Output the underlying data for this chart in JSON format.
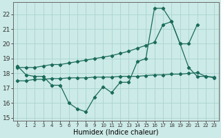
{
  "background_color": "#cceae7",
  "grid_color": "#aad4d0",
  "line_color": "#1a6b5a",
  "xlabel": "Humidex (Indice chaleur)",
  "yticks": [
    15,
    16,
    17,
    18,
    19,
    20,
    21,
    22
  ],
  "ylim": [
    14.8,
    22.8
  ],
  "xlim": [
    -0.5,
    23.5
  ],
  "xtick_labels": [
    "0",
    "1",
    "2",
    "3",
    "4",
    "5",
    "6",
    "7",
    "8",
    "9",
    "10",
    "11",
    "12",
    "13",
    "14",
    "15",
    "16",
    "17",
    "18",
    "19",
    "20",
    "21",
    "22",
    "23"
  ],
  "main_x": [
    0,
    1,
    2,
    3,
    4,
    5,
    6,
    7,
    8,
    9,
    10,
    11,
    12,
    13,
    14,
    15,
    16,
    17,
    18,
    19,
    20,
    21,
    22,
    23
  ],
  "main_y": [
    18.5,
    17.9,
    17.8,
    17.8,
    17.2,
    17.2,
    16.0,
    15.6,
    15.4,
    16.4,
    17.1,
    16.7,
    17.4,
    17.4,
    18.8,
    19.0,
    22.4,
    22.4,
    21.5,
    20.0,
    18.4,
    17.8,
    17.8,
    17.7
  ],
  "upper_x": [
    0,
    1,
    2,
    3,
    4,
    5,
    6,
    7,
    8,
    9,
    10,
    11,
    12,
    13,
    14,
    15,
    16,
    17,
    18,
    19,
    20,
    21
  ],
  "upper_y": [
    18.4,
    18.4,
    18.4,
    18.5,
    18.6,
    18.6,
    18.7,
    18.8,
    18.9,
    19.0,
    19.1,
    19.2,
    19.35,
    19.5,
    19.7,
    19.9,
    20.1,
    21.3,
    21.5,
    20.0,
    20.0,
    21.3
  ],
  "lower_x": [
    0,
    1,
    2,
    3,
    4,
    5,
    6,
    7,
    8,
    9,
    10,
    11,
    12,
    13,
    14,
    15,
    16,
    17,
    18,
    19,
    20,
    21,
    22,
    23
  ],
  "lower_y": [
    17.5,
    17.5,
    17.6,
    17.6,
    17.65,
    17.65,
    17.7,
    17.7,
    17.7,
    17.75,
    17.75,
    17.75,
    17.8,
    17.8,
    17.8,
    17.85,
    17.9,
    17.9,
    17.95,
    17.95,
    18.0,
    18.05,
    17.8,
    17.75
  ]
}
